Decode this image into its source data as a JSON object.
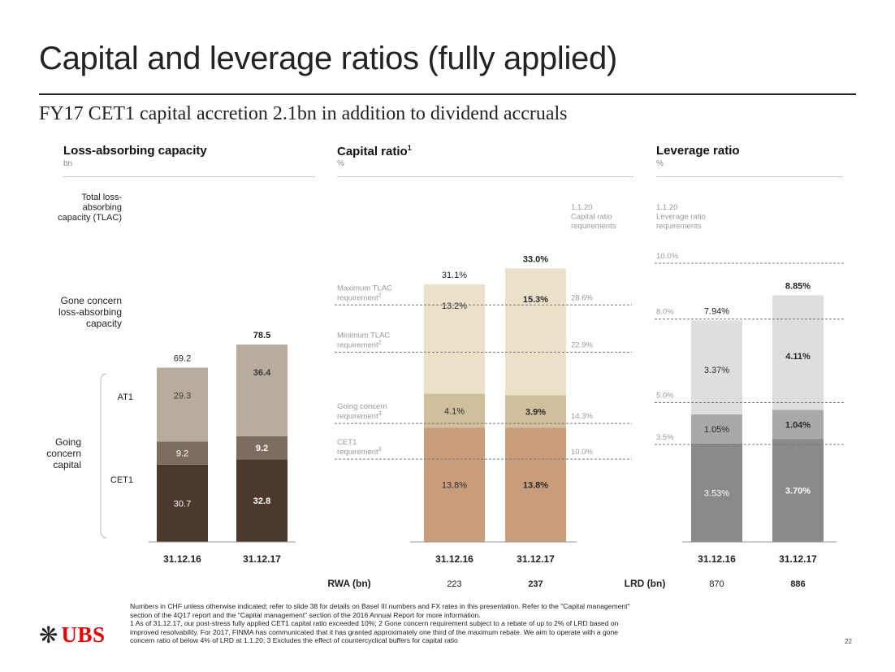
{
  "title": "Capital and leverage ratios (fully applied)",
  "subtitle": "FY17 CET1 capital accretion 2.1bn in addition to dividend accruals",
  "brand": {
    "logo_text": "UBS",
    "logo_icon": "keys-icon",
    "accent": "#e60000"
  },
  "page_number": "22",
  "footnotes": [
    "Numbers in CHF unless otherwise indicated; refer to slide 38 for details on Basel III numbers and FX rates in this presentation. Refer to the \"Capital management\"",
    "section of the 4Q17 report and the \"Capital management\" section of the 2016 Annual Report for more information.",
    "1 As of 31.12.17, our post-stress fully applied CET1 capital ratio exceeded 10%; 2 Gone concern requirement subject to a rebate of up to 2% of LRD based on",
    "improved resolvability. For 2017, FINMA has communicated that it has granted approximately one third of the maximum rebate. We aim to operate with a gone",
    "concern ratio of below 4% of LRD at 1.1.20; 3 Excludes the effect of countercyclical buffers for capital ratio"
  ],
  "chart_data": [
    {
      "type": "bar",
      "stacked": true,
      "title": "Loss-absorbing capacity",
      "unit": "bn",
      "categories": [
        "31.12.16",
        "31.12.17"
      ],
      "series": [
        {
          "name": "CET1",
          "values": [
            30.7,
            32.8
          ],
          "color": "#4b3a2b"
        },
        {
          "name": "AT1",
          "values": [
            9.2,
            9.2
          ],
          "color": "#7e6d5e"
        },
        {
          "name": "Gone concern loss-absorbing capacity",
          "values": [
            29.3,
            36.4
          ],
          "color": "#b8ad9c"
        }
      ],
      "totals": [
        "69.2",
        "78.5"
      ],
      "totals_label": "Total loss-absorbing capacity (TLAC)",
      "group_label": "Going concern capital",
      "ylim": [
        0,
        80
      ]
    },
    {
      "type": "bar",
      "stacked": true,
      "title": "Capital ratio",
      "title_superscript": "1",
      "unit": "%",
      "categories": [
        "31.12.16",
        "31.12.17"
      ],
      "series": [
        {
          "name": "CET1",
          "values": [
            13.8,
            13.8
          ],
          "labels": [
            "13.8%",
            "13.8%"
          ],
          "color": "#c89d7b"
        },
        {
          "name": "AT1",
          "values": [
            4.1,
            3.9
          ],
          "labels": [
            "4.1%",
            "3.9%"
          ],
          "color": "#cfbf9d"
        },
        {
          "name": "Gone concern",
          "values": [
            13.2,
            15.3
          ],
          "labels": [
            "13.2%",
            "15.3%"
          ],
          "color": "#ebe0c8"
        }
      ],
      "totals": [
        "31.1%",
        "33.0%"
      ],
      "requirements_header": "1.1.20 Capital ratio requirements",
      "requirements": [
        {
          "name": "Maximum TLAC requirement",
          "sup": "2",
          "value": 28.6,
          "label": "28.6%"
        },
        {
          "name": "Minimum TLAC requirement",
          "sup": "2",
          "value": 22.9,
          "label": "22.9%"
        },
        {
          "name": "Going concern requirement",
          "sup": "3",
          "value": 14.3,
          "label": "14.3%"
        },
        {
          "name": "CET1 requirement",
          "sup": "3",
          "value": 10.0,
          "label": "10.0%"
        }
      ],
      "footer_label": "RWA (bn)",
      "footer_values": [
        "223",
        "237"
      ],
      "ylim": [
        0,
        34
      ]
    },
    {
      "type": "bar",
      "stacked": true,
      "title": "Leverage ratio",
      "unit": "%",
      "categories": [
        "31.12.16",
        "31.12.17"
      ],
      "series": [
        {
          "name": "CET1",
          "values": [
            3.53,
            3.7
          ],
          "labels": [
            "3.53%",
            "3.70%"
          ],
          "color": "#8a8a8a"
        },
        {
          "name": "AT1",
          "values": [
            1.05,
            1.04
          ],
          "labels": [
            "1.05%",
            "1.04%"
          ],
          "color": "#a9a9a9"
        },
        {
          "name": "Gone concern",
          "values": [
            3.37,
            4.11
          ],
          "labels": [
            "3.37%",
            "4.11%"
          ],
          "color": "#dedede"
        }
      ],
      "totals": [
        "7.94%",
        "8.85%"
      ],
      "requirements_header": "1.1.20 Leverage ratio requirements",
      "requirements": [
        {
          "value": 10.0,
          "label": "10.0%"
        },
        {
          "value": 8.0,
          "label": "8.0%"
        },
        {
          "value": 5.0,
          "label": "5.0%"
        },
        {
          "value": 3.5,
          "label": "3.5%"
        }
      ],
      "footer_label": "LRD (bn)",
      "footer_values": [
        "870",
        "886"
      ],
      "ylim": [
        0,
        10
      ]
    }
  ]
}
